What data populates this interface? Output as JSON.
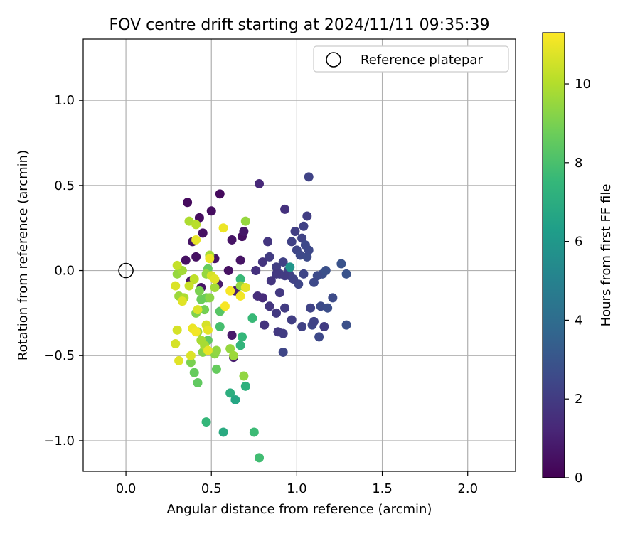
{
  "chart_data": {
    "type": "scatter",
    "title": "FOV centre drift starting at 2024/11/11 09:35:39",
    "xlabel": "Angular distance from reference (arcmin)",
    "ylabel": "Rotation from reference (arcmin)",
    "xlim": [
      -0.25,
      2.28
    ],
    "ylim": [
      -1.18,
      1.36
    ],
    "xticks": [
      0.0,
      0.5,
      1.0,
      1.5,
      2.0
    ],
    "xtick_labels": [
      "0.0",
      "0.5",
      "1.0",
      "1.5",
      "2.0"
    ],
    "yticks": [
      -1.0,
      -0.5,
      0.0,
      0.5,
      1.0
    ],
    "ytick_labels": [
      "−1.0",
      "−0.5",
      "0.0",
      "0.5",
      "1.0"
    ],
    "grid": true,
    "legend": {
      "position": "upper right",
      "entries": [
        "Reference platepar"
      ]
    },
    "reference_point": {
      "x": 0.0,
      "y": 0.0
    },
    "colorbar": {
      "label": "Hours from first FF file",
      "range": [
        0,
        11.3
      ],
      "ticks": [
        0,
        2,
        4,
        6,
        8,
        10
      ],
      "tick_labels": [
        "0",
        "2",
        "4",
        "6",
        "8",
        "10"
      ],
      "colormap": "viridis"
    },
    "colormap_stops": [
      "#440154",
      "#482878",
      "#3e4989",
      "#31688e",
      "#26828e",
      "#1f9e89",
      "#35b779",
      "#6ece58",
      "#b5de2b",
      "#fde725"
    ],
    "points": [
      [
        0.36,
        0.4,
        0.3
      ],
      [
        0.43,
        0.31,
        0.4
      ],
      [
        0.55,
        0.45,
        0.3
      ],
      [
        0.5,
        0.35,
        0.4
      ],
      [
        0.45,
        0.22,
        0.5
      ],
      [
        0.39,
        0.17,
        0.6
      ],
      [
        0.35,
        0.06,
        0.5
      ],
      [
        0.41,
        0.08,
        0.5
      ],
      [
        0.52,
        0.07,
        0.6
      ],
      [
        0.6,
        0.0,
        0.5
      ],
      [
        0.62,
        0.18,
        0.6
      ],
      [
        0.68,
        0.2,
        0.5
      ],
      [
        0.69,
        0.23,
        0.7
      ],
      [
        0.67,
        0.06,
        0.6
      ],
      [
        0.78,
        0.51,
        1.3
      ],
      [
        0.93,
        0.36,
        1.6
      ],
      [
        0.83,
        0.17,
        1.8
      ],
      [
        0.8,
        0.05,
        1.7
      ],
      [
        0.76,
        0.0,
        1.6
      ],
      [
        0.77,
        -0.15,
        1.5
      ],
      [
        0.8,
        -0.16,
        1.4
      ],
      [
        0.62,
        -0.38,
        0.8
      ],
      [
        0.63,
        -0.51,
        0.9
      ],
      [
        0.38,
        -0.06,
        0.7
      ],
      [
        0.44,
        -0.1,
        0.6
      ],
      [
        0.54,
        -0.08,
        0.8
      ],
      [
        0.64,
        -0.12,
        0.9
      ],
      [
        0.84,
        0.08,
        2.0
      ],
      [
        0.88,
        0.02,
        2.1
      ],
      [
        0.9,
        -0.02,
        2.0
      ],
      [
        0.92,
        0.05,
        2.2
      ],
      [
        0.95,
        0.0,
        2.3
      ],
      [
        0.97,
        0.17,
        2.2
      ],
      [
        0.99,
        0.23,
        2.1
      ],
      [
        1.0,
        0.12,
        2.4
      ],
      [
        1.02,
        0.09,
        2.5
      ],
      [
        1.03,
        0.19,
        2.3
      ],
      [
        1.04,
        0.26,
        2.2
      ],
      [
        1.06,
        0.32,
        2.1
      ],
      [
        1.07,
        0.55,
        2.3
      ],
      [
        1.05,
        0.15,
        2.5
      ],
      [
        1.06,
        0.08,
        2.6
      ],
      [
        1.07,
        0.12,
        2.5
      ],
      [
        1.01,
        -0.08,
        2.4
      ],
      [
        0.98,
        -0.05,
        2.3
      ],
      [
        0.96,
        -0.03,
        2.2
      ],
      [
        0.93,
        -0.03,
        2.0
      ],
      [
        0.88,
        -0.02,
        1.9
      ],
      [
        0.85,
        -0.06,
        1.8
      ],
      [
        0.9,
        -0.13,
        1.9
      ],
      [
        0.93,
        -0.22,
        2.0
      ],
      [
        0.88,
        -0.25,
        1.9
      ],
      [
        0.84,
        -0.21,
        1.8
      ],
      [
        0.81,
        -0.32,
        1.7
      ],
      [
        0.89,
        -0.36,
        1.9
      ],
      [
        0.92,
        -0.37,
        2.0
      ],
      [
        0.97,
        -0.29,
        2.1
      ],
      [
        1.03,
        -0.33,
        2.2
      ],
      [
        1.08,
        -0.22,
        2.3
      ],
      [
        1.09,
        -0.32,
        2.4
      ],
      [
        1.1,
        -0.3,
        2.3
      ],
      [
        1.13,
        -0.39,
        2.5
      ],
      [
        1.14,
        -0.21,
        2.6
      ],
      [
        1.16,
        -0.33,
        2.0
      ],
      [
        1.18,
        -0.22,
        2.7
      ],
      [
        1.21,
        -0.16,
        2.6
      ],
      [
        1.15,
        -0.02,
        2.7
      ],
      [
        1.17,
        0.0,
        2.8
      ],
      [
        1.12,
        -0.03,
        2.6
      ],
      [
        1.1,
        -0.07,
        2.5
      ],
      [
        1.04,
        -0.02,
        2.4
      ],
      [
        0.92,
        -0.48,
        2.4
      ],
      [
        1.26,
        0.04,
        2.9
      ],
      [
        1.29,
        -0.02,
        2.9
      ],
      [
        1.29,
        -0.32,
        2.8
      ],
      [
        0.96,
        0.02,
        5.9
      ],
      [
        0.74,
        -0.28,
        7.6
      ],
      [
        0.67,
        -0.05,
        7.6
      ],
      [
        0.68,
        -0.39,
        7.5
      ],
      [
        0.67,
        -0.44,
        7.4
      ],
      [
        0.7,
        -0.68,
        7.2
      ],
      [
        0.61,
        -0.72,
        7.1
      ],
      [
        0.64,
        -0.76,
        6.7
      ],
      [
        0.57,
        -0.95,
        6.9
      ],
      [
        0.75,
        -0.95,
        7.7
      ],
      [
        0.78,
        -1.1,
        7.8
      ],
      [
        0.47,
        -0.89,
        7.5
      ],
      [
        0.55,
        -0.24,
        8.3
      ],
      [
        0.55,
        -0.33,
        7.9
      ],
      [
        0.53,
        -0.58,
        8.6
      ],
      [
        0.47,
        -0.16,
        8.8
      ],
      [
        0.48,
        -0.41,
        8.5
      ],
      [
        0.42,
        -0.66,
        8.5
      ],
      [
        0.4,
        -0.6,
        8.6
      ],
      [
        0.38,
        -0.54,
        9.0
      ],
      [
        0.46,
        -0.23,
        8.9
      ],
      [
        0.44,
        -0.17,
        8.7
      ],
      [
        0.48,
        0.01,
        8.6
      ],
      [
        0.43,
        -0.12,
        9.0
      ],
      [
        0.41,
        -0.25,
        9.1
      ],
      [
        0.45,
        -0.48,
        9.2
      ],
      [
        0.52,
        -0.49,
        9.3
      ],
      [
        0.53,
        -0.47,
        9.4
      ],
      [
        0.61,
        -0.46,
        9.5
      ],
      [
        0.63,
        -0.5,
        9.6
      ],
      [
        0.69,
        -0.62,
        9.4
      ],
      [
        0.7,
        -0.1,
        9.7
      ],
      [
        0.67,
        -0.09,
        9.5
      ],
      [
        0.49,
        -0.16,
        9.3
      ],
      [
        0.42,
        -0.36,
        9.6
      ],
      [
        0.44,
        -0.41,
        9.8
      ],
      [
        0.46,
        -0.44,
        9.8
      ],
      [
        0.31,
        -0.15,
        9.6
      ],
      [
        0.34,
        -0.16,
        9.9
      ],
      [
        0.3,
        -0.02,
        9.5
      ],
      [
        0.33,
        0.0,
        9.7
      ],
      [
        0.37,
        0.29,
        9.9
      ],
      [
        0.41,
        0.27,
        10.1
      ],
      [
        0.7,
        0.29,
        9.5
      ],
      [
        0.49,
        0.09,
        9.7
      ],
      [
        0.52,
        -0.1,
        9.7
      ],
      [
        0.47,
        -0.02,
        9.5
      ],
      [
        0.4,
        -0.05,
        10.2
      ],
      [
        0.37,
        -0.09,
        10.4
      ],
      [
        0.3,
        0.03,
        10.3
      ],
      [
        0.29,
        -0.09,
        10.7
      ],
      [
        0.33,
        -0.18,
        10.8
      ],
      [
        0.3,
        -0.35,
        10.6
      ],
      [
        0.29,
        -0.43,
        10.6
      ],
      [
        0.31,
        -0.53,
        10.8
      ],
      [
        0.38,
        -0.5,
        10.7
      ],
      [
        0.39,
        -0.34,
        11.0
      ],
      [
        0.41,
        -0.36,
        11.1
      ],
      [
        0.42,
        -0.23,
        10.7
      ],
      [
        0.47,
        -0.32,
        10.6
      ],
      [
        0.48,
        -0.35,
        10.9
      ],
      [
        0.48,
        -0.47,
        10.9
      ],
      [
        0.41,
        0.18,
        10.9
      ],
      [
        0.49,
        0.07,
        11.0
      ],
      [
        0.5,
        -0.03,
        10.6
      ],
      [
        0.52,
        -0.05,
        10.8
      ],
      [
        0.57,
        0.25,
        11.0
      ],
      [
        0.58,
        -0.21,
        11.2
      ],
      [
        0.61,
        -0.12,
        11.2
      ],
      [
        0.67,
        -0.15,
        11.1
      ],
      [
        0.7,
        -0.1,
        10.9
      ]
    ]
  }
}
